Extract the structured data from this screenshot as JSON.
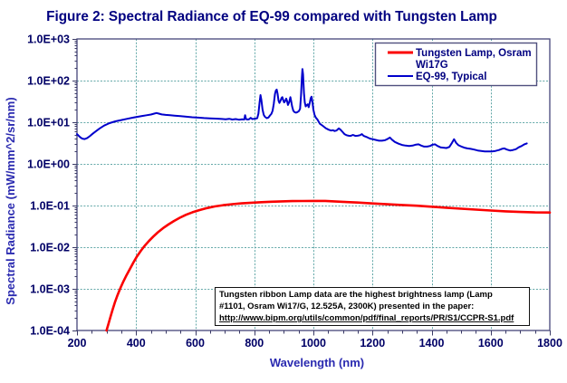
{
  "title": "Figure 2: Spectral Radiance of EQ-99 compared with Tungsten Lamp",
  "x_axis": {
    "title": "Wavelength (nm)",
    "min": 200,
    "max": 1800,
    "tick_labels": [
      "200",
      "400",
      "600",
      "800",
      "1000",
      "1200",
      "1400",
      "1600",
      "1800"
    ],
    "minor_tick_step": 50
  },
  "y_axis": {
    "title": "Spectral Radiance (mW/mm^2/sr/nm)",
    "scale": "log",
    "min": 0.0001,
    "max": 1000.0,
    "tick_labels": [
      "1.0E+03",
      "1.0E+02",
      "1.0E+01",
      "1.0E+00",
      "1.0E-01",
      "1.0E-02",
      "1.0E-03",
      "1.0E-04"
    ]
  },
  "legend": {
    "items": [
      {
        "label": "Tungsten Lamp, Osram Wi17G",
        "lines": [
          "Tungsten Lamp, Osram",
          "Wi17G"
        ],
        "color": "#fb0000"
      },
      {
        "label": "EQ-99, Typical",
        "lines": [
          "EQ-99, Typical"
        ],
        "color": "#0000cc"
      }
    ]
  },
  "annotation": {
    "lines": [
      "Tungsten ribbon Lamp data are the highest brightness lamp (Lamp",
      "#1101, Osram Wi17/G, 12.525A, 2300K) presented in the paper:",
      "http://www.bipm.org/utils/common/pdf/final_reports/PR/S1/CCPR-S1.pdf"
    ]
  },
  "colors": {
    "title": "#000080",
    "tick_label": "#000066",
    "axis_title": "#2a2ab0",
    "axis_line": "#3a3a66",
    "gridline": "#61a7a7",
    "legend_text": "#000080",
    "annotation_text": "#000000",
    "tungsten": "#fb0000",
    "eq99": "#0000cc"
  },
  "chart_data": {
    "type": "line",
    "title": "Figure 2: Spectral Radiance of EQ-99 compared with Tungsten Lamp",
    "xlabel": "Wavelength (nm)",
    "ylabel": "Spectral Radiance (mW/mm^2/sr/nm)",
    "x_range": [
      200,
      1800
    ],
    "y_range": [
      0.0001,
      1000.0
    ],
    "y_scale": "log",
    "grid": "dashed",
    "legend_position": "top-right",
    "series": [
      {
        "name": "Tungsten Lamp, Osram Wi17G",
        "color": "#fb0000",
        "points": [
          [
            300,
            0.0001
          ],
          [
            306,
            0.00014
          ],
          [
            313,
            0.00021
          ],
          [
            320,
            0.00031
          ],
          [
            328,
            0.00047
          ],
          [
            337,
            0.0007
          ],
          [
            347,
            0.00105
          ],
          [
            357,
            0.0015
          ],
          [
            368,
            0.00215
          ],
          [
            379,
            0.003
          ],
          [
            391,
            0.0043
          ],
          [
            403,
            0.006
          ],
          [
            416,
            0.0082
          ],
          [
            429,
            0.0108
          ],
          [
            443,
            0.014
          ],
          [
            458,
            0.018
          ],
          [
            474,
            0.0228
          ],
          [
            491,
            0.0285
          ],
          [
            509,
            0.035
          ],
          [
            528,
            0.0425
          ],
          [
            548,
            0.051
          ],
          [
            569,
            0.06
          ],
          [
            591,
            0.069
          ],
          [
            615,
            0.078
          ],
          [
            640,
            0.087
          ],
          [
            666,
            0.095
          ],
          [
            695,
            0.102
          ],
          [
            725,
            0.108
          ],
          [
            757,
            0.113
          ],
          [
            790,
            0.117
          ],
          [
            824,
            0.1205
          ],
          [
            858,
            0.1235
          ],
          [
            893,
            0.126
          ],
          [
            928,
            0.1275
          ],
          [
            963,
            0.1285
          ],
          [
            1000,
            0.129
          ],
          [
            1040,
            0.129
          ],
          [
            1100,
            0.123
          ],
          [
            1150,
            0.118
          ],
          [
            1200,
            0.112
          ],
          [
            1250,
            0.107
          ],
          [
            1300,
            0.103
          ],
          [
            1350,
            0.099
          ],
          [
            1400,
            0.0935
          ],
          [
            1450,
            0.0885
          ],
          [
            1500,
            0.084
          ],
          [
            1550,
            0.08
          ],
          [
            1600,
            0.076
          ],
          [
            1650,
            0.0725
          ],
          [
            1700,
            0.07
          ],
          [
            1750,
            0.0685
          ],
          [
            1800,
            0.068
          ]
        ]
      },
      {
        "name": "EQ-99, Typical",
        "color": "#0000cc",
        "points": [
          [
            200,
            5.2
          ],
          [
            206,
            4.7
          ],
          [
            212,
            4.3
          ],
          [
            218,
            4.05
          ],
          [
            226,
            3.95
          ],
          [
            234,
            4.15
          ],
          [
            243,
            4.6
          ],
          [
            253,
            5.3
          ],
          [
            264,
            6.1
          ],
          [
            277,
            7.1
          ],
          [
            292,
            8.3
          ],
          [
            310,
            9.5
          ],
          [
            330,
            10.5
          ],
          [
            350,
            11.3
          ],
          [
            370,
            12.1
          ],
          [
            390,
            12.9
          ],
          [
            405,
            13.5
          ],
          [
            420,
            14.1
          ],
          [
            435,
            14.7
          ],
          [
            450,
            15.3
          ],
          [
            461,
            16.1
          ],
          [
            469,
            16.7
          ],
          [
            477,
            16.1
          ],
          [
            487,
            15.4
          ],
          [
            500,
            15.0
          ],
          [
            515,
            14.7
          ],
          [
            530,
            14.4
          ],
          [
            550,
            14.0
          ],
          [
            570,
            13.6
          ],
          [
            590,
            13.2
          ],
          [
            610,
            12.9
          ],
          [
            630,
            12.6
          ],
          [
            650,
            12.4
          ],
          [
            670,
            12.2
          ],
          [
            690,
            12.0
          ],
          [
            703,
            11.8
          ],
          [
            715,
            12.1
          ],
          [
            726,
            11.6
          ],
          [
            737,
            11.9
          ],
          [
            748,
            11.5
          ],
          [
            759,
            11.8
          ],
          [
            766,
            11.6
          ],
          [
            769,
            14.8
          ],
          [
            772,
            12.0
          ],
          [
            776,
            11.6
          ],
          [
            782,
            11.8
          ],
          [
            788,
            12.8
          ],
          [
            793,
            11.9
          ],
          [
            799,
            12.1
          ],
          [
            806,
            12.3
          ],
          [
            810,
            12.5
          ],
          [
            814,
            16
          ],
          [
            818,
            30
          ],
          [
            821,
            45
          ],
          [
            824,
            34
          ],
          [
            828,
            20
          ],
          [
            832,
            15
          ],
          [
            836,
            13.5
          ],
          [
            842,
            12.5
          ],
          [
            848,
            13
          ],
          [
            853,
            14.5
          ],
          [
            858,
            16
          ],
          [
            862,
            19
          ],
          [
            866,
            28
          ],
          [
            870,
            48
          ],
          [
            873,
            58
          ],
          [
            876,
            61
          ],
          [
            879,
            48
          ],
          [
            882,
            33
          ],
          [
            885,
            29
          ],
          [
            889,
            33
          ],
          [
            892,
            38
          ],
          [
            895,
            40
          ],
          [
            898,
            34
          ],
          [
            901,
            30
          ],
          [
            904,
            32
          ],
          [
            908,
            37
          ],
          [
            911,
            32
          ],
          [
            914,
            26
          ],
          [
            918,
            30
          ],
          [
            922,
            40
          ],
          [
            925,
            32
          ],
          [
            928,
            24
          ],
          [
            932,
            19
          ],
          [
            936,
            17.5
          ],
          [
            941,
            17
          ],
          [
            946,
            17.5
          ],
          [
            951,
            18.5
          ],
          [
            955,
            21
          ],
          [
            958,
            42
          ],
          [
            961,
            120
          ],
          [
            963,
            190
          ],
          [
            965,
            140
          ],
          [
            968,
            50
          ],
          [
            971,
            30
          ],
          [
            974,
            24
          ],
          [
            978,
            26
          ],
          [
            981,
            27
          ],
          [
            984,
            23
          ],
          [
            988,
            30
          ],
          [
            991,
            38
          ],
          [
            994,
            41
          ],
          [
            997,
            30
          ],
          [
            1000,
            20
          ],
          [
            1004,
            15
          ],
          [
            1008,
            13
          ],
          [
            1014,
            11.5
          ],
          [
            1022,
            9.2
          ],
          [
            1032,
            8.2
          ],
          [
            1042,
            7.2
          ],
          [
            1052,
            6.6
          ],
          [
            1060,
            6.3
          ],
          [
            1066,
            6.45
          ],
          [
            1072,
            6.15
          ],
          [
            1078,
            6.3
          ],
          [
            1086,
            7.1
          ],
          [
            1092,
            6.6
          ],
          [
            1098,
            5.9
          ],
          [
            1105,
            5.2
          ],
          [
            1112,
            4.9
          ],
          [
            1119,
            4.75
          ],
          [
            1126,
            4.7
          ],
          [
            1134,
            4.95
          ],
          [
            1142,
            4.7
          ],
          [
            1150,
            4.75
          ],
          [
            1158,
            4.9
          ],
          [
            1164,
            5.2
          ],
          [
            1170,
            4.7
          ],
          [
            1182,
            4.35
          ],
          [
            1192,
            4.05
          ],
          [
            1202,
            3.9
          ],
          [
            1212,
            3.75
          ],
          [
            1222,
            3.6
          ],
          [
            1232,
            3.6
          ],
          [
            1242,
            3.7
          ],
          [
            1252,
            4.0
          ],
          [
            1259,
            4.3
          ],
          [
            1266,
            3.8
          ],
          [
            1276,
            3.35
          ],
          [
            1288,
            3.05
          ],
          [
            1300,
            2.85
          ],
          [
            1312,
            2.75
          ],
          [
            1324,
            2.7
          ],
          [
            1336,
            2.75
          ],
          [
            1347,
            2.9
          ],
          [
            1356,
            2.95
          ],
          [
            1365,
            2.75
          ],
          [
            1375,
            2.6
          ],
          [
            1385,
            2.6
          ],
          [
            1395,
            2.7
          ],
          [
            1404,
            2.9
          ],
          [
            1412,
            2.95
          ],
          [
            1420,
            2.7
          ],
          [
            1430,
            2.5
          ],
          [
            1440,
            2.45
          ],
          [
            1450,
            2.4
          ],
          [
            1460,
            2.55
          ],
          [
            1469,
            3.2
          ],
          [
            1476,
            3.9
          ],
          [
            1483,
            3.2
          ],
          [
            1491,
            2.8
          ],
          [
            1501,
            2.6
          ],
          [
            1511,
            2.45
          ],
          [
            1521,
            2.35
          ],
          [
            1532,
            2.3
          ],
          [
            1544,
            2.2
          ],
          [
            1556,
            2.1
          ],
          [
            1568,
            2.05
          ],
          [
            1580,
            2.0
          ],
          [
            1592,
            2.0
          ],
          [
            1604,
            2.0
          ],
          [
            1616,
            2.05
          ],
          [
            1628,
            2.15
          ],
          [
            1638,
            2.3
          ],
          [
            1646,
            2.35
          ],
          [
            1655,
            2.2
          ],
          [
            1665,
            2.1
          ],
          [
            1675,
            2.15
          ],
          [
            1685,
            2.25
          ],
          [
            1695,
            2.5
          ],
          [
            1705,
            2.7
          ],
          [
            1714,
            2.95
          ],
          [
            1722,
            3.1
          ]
        ]
      }
    ]
  }
}
